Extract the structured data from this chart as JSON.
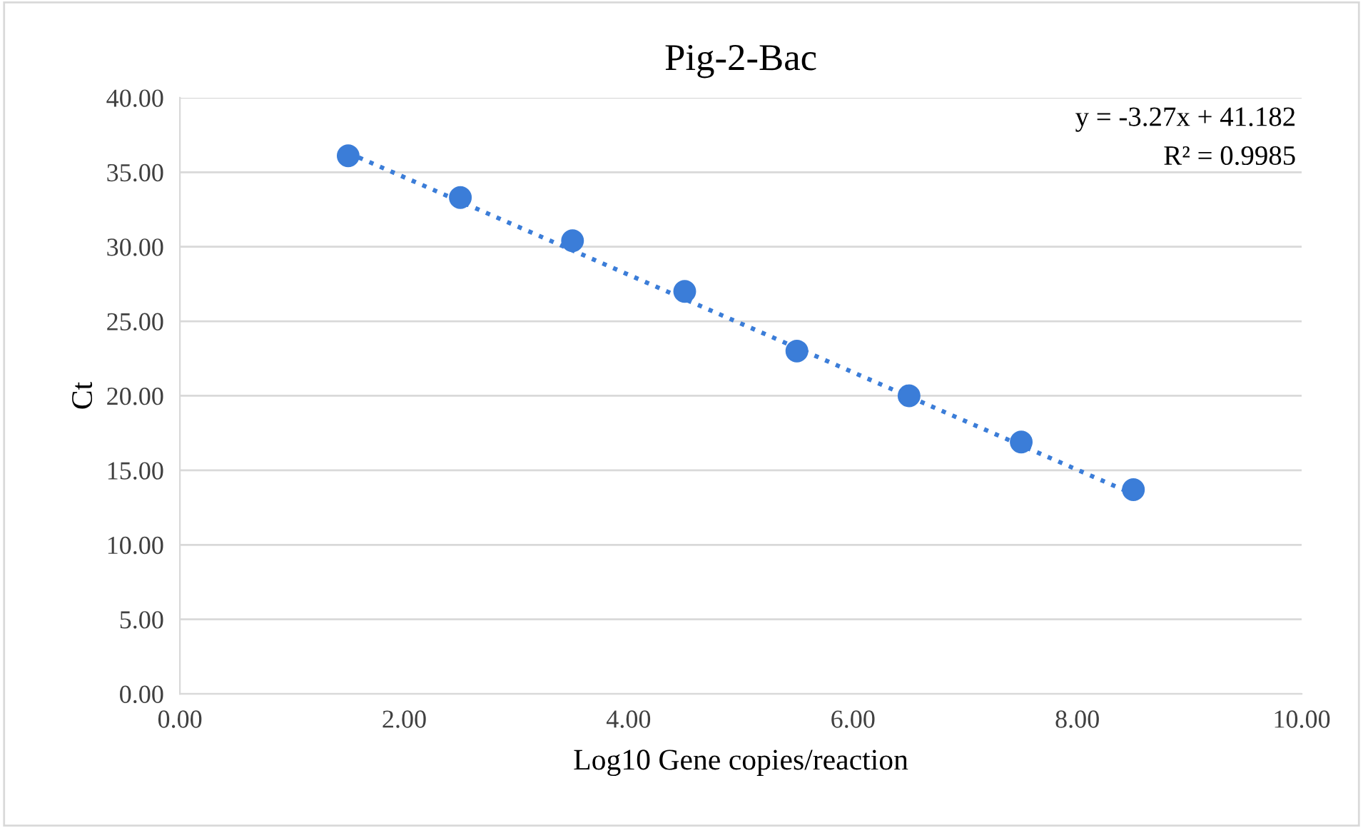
{
  "chart_data": {
    "type": "scatter",
    "title": "Pig-2-Bac",
    "xlabel": "Log10 Gene copies/reaction",
    "ylabel": "Ct",
    "x": [
      1.5,
      2.5,
      3.5,
      4.5,
      5.5,
      6.5,
      7.5,
      8.5
    ],
    "series": [
      {
        "color": "#3b7dd8",
        "marker": "circle",
        "values": [
          36.1,
          33.3,
          30.4,
          27.0,
          23.0,
          20.0,
          16.9,
          13.7
        ]
      },
      {
        "type": "line",
        "color": "#3b7dd8",
        "marker": "none",
        "line_style": "dotted",
        "x": [
          1.5,
          8.5
        ],
        "values": [
          36.3,
          13.4
        ]
      }
    ],
    "annotations": [
      "y = -3.27x + 41.182",
      "R² = 0.9985"
    ],
    "xlim": [
      0,
      10
    ],
    "ylim": [
      0,
      40
    ],
    "xticks": [
      {
        "value": 0,
        "label": "0.00"
      },
      {
        "value": 2,
        "label": "2.00"
      },
      {
        "value": 4,
        "label": "4.00"
      },
      {
        "value": 6,
        "label": "6.00"
      },
      {
        "value": 8,
        "label": "8.00"
      },
      {
        "value": 10,
        "label": "10.00"
      }
    ],
    "yticks": [
      {
        "value": 0,
        "label": "0.00"
      },
      {
        "value": 5,
        "label": "5.00"
      },
      {
        "value": 10,
        "label": "10.00"
      },
      {
        "value": 15,
        "label": "15.00"
      },
      {
        "value": 20,
        "label": "20.00"
      },
      {
        "value": 25,
        "label": "25.00"
      },
      {
        "value": 30,
        "label": "30.00"
      },
      {
        "value": 35,
        "label": "35.00"
      },
      {
        "value": 40,
        "label": "40.00"
      }
    ],
    "grid": "y",
    "legend": false
  }
}
